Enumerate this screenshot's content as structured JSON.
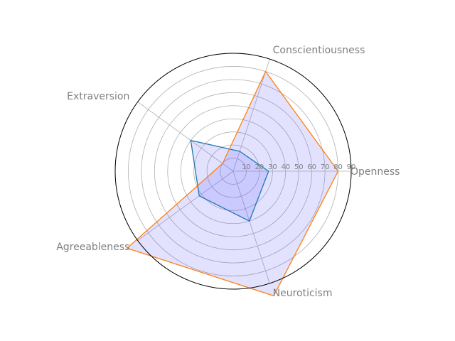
{
  "chart_data": {
    "type": "radar",
    "categories": [
      "Openness",
      "Conscientiousness",
      "Extraversion",
      "Agreeableness",
      "Neuroticism"
    ],
    "rlim": [
      0,
      90
    ],
    "radial_ticks": [
      10,
      20,
      30,
      40,
      50,
      60,
      70,
      80,
      90
    ],
    "radial_tick_labels": [
      "10",
      "20",
      "30",
      "40",
      "50",
      "60",
      "70",
      "80",
      "90"
    ],
    "grid": true,
    "fill_color": "#6060ff",
    "series": [
      {
        "values": [
          27,
          16,
          40,
          32,
          40
        ],
        "color": "#1f77b4"
      },
      {
        "values": [
          80,
          80,
          10,
          100,
          100
        ],
        "color": "#ff7f0e"
      }
    ]
  }
}
